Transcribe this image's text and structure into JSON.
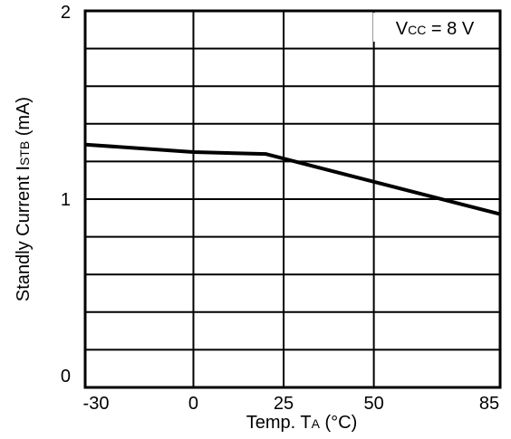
{
  "chart_data": {
    "type": "line",
    "title": "",
    "xlabel": {
      "prefix": "Temp.  T",
      "sub": "A",
      "suffix": " (°C)"
    },
    "ylabel": {
      "prefix": "Standly Current I",
      "sub": "STB",
      "suffix": " (mA)"
    },
    "xlim": [
      -30,
      85
    ],
    "ylim": [
      0,
      2
    ],
    "x_ticks": [
      -30,
      0,
      25,
      50,
      85
    ],
    "x_tick_labels": [
      "-30",
      "0",
      "25",
      "50",
      "85"
    ],
    "y_ticks": [
      0,
      1,
      2
    ],
    "y_tick_labels": [
      "0",
      "1",
      "2"
    ],
    "vertical_grid": [
      0,
      25,
      50
    ],
    "horizontal_grid_step": 0.2,
    "grid": true,
    "series": [
      {
        "x": [
          -30,
          0,
          20,
          85
        ],
        "y": [
          1.29,
          1.25,
          1.24,
          0.92
        ]
      }
    ],
    "annotation": {
      "prefix": "V",
      "sub": "CC",
      "suffix": " = 8 V"
    }
  }
}
